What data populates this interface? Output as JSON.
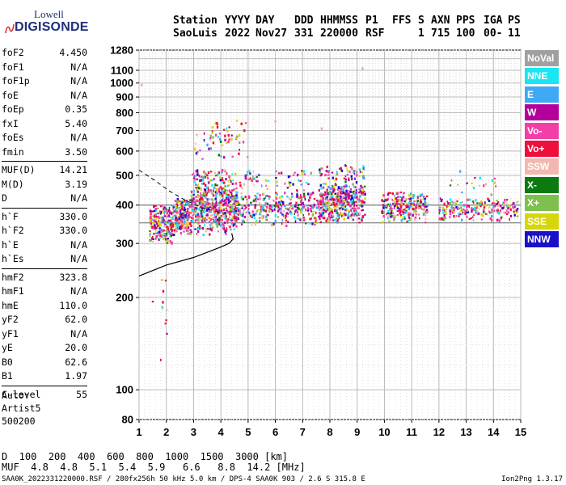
{
  "logo": {
    "line1": "Lowell",
    "line2": "DIGISONDE"
  },
  "header": {
    "cols": [
      {
        "key": "Station",
        "value": "SaoLuis"
      },
      {
        "key": "YYYY",
        "value": "2022"
      },
      {
        "key": "DAY",
        "value": "Nov27"
      },
      {
        "key": "DDD",
        "value": "331"
      },
      {
        "key": "HHMMSS",
        "value": "220000"
      },
      {
        "key": "P1",
        "value": "RSF"
      },
      {
        "key": "FFS",
        "value": ""
      },
      {
        "key": "S",
        "value": "1"
      },
      {
        "key": "AXN",
        "value": "715"
      },
      {
        "key": "PPS",
        "value": "100"
      },
      {
        "key": "IGA",
        "value": "00-"
      },
      {
        "key": "PS",
        "value": "11"
      }
    ]
  },
  "params": {
    "group1": [
      {
        "label": "foF2",
        "value": "4.450"
      },
      {
        "label": "foF1",
        "value": "N/A"
      },
      {
        "label": "foF1p",
        "value": "N/A"
      },
      {
        "label": "foE",
        "value": "N/A"
      },
      {
        "label": "foEp",
        "value": "0.35"
      },
      {
        "label": "fxI",
        "value": "5.40"
      },
      {
        "label": "foEs",
        "value": "N/A"
      },
      {
        "label": "fmin",
        "value": "3.50"
      }
    ],
    "group2": [
      {
        "label": "MUF(D)",
        "value": "14.21"
      },
      {
        "label": "M(D)",
        "value": "3.19"
      },
      {
        "label": "D",
        "value": "N/A"
      }
    ],
    "group3": [
      {
        "label": "h`F",
        "value": "330.0"
      },
      {
        "label": "h`F2",
        "value": "330.0"
      },
      {
        "label": "h`E",
        "value": "N/A"
      },
      {
        "label": "h`Es",
        "value": "N/A"
      }
    ],
    "group4": [
      {
        "label": "hmF2",
        "value": "323.8"
      },
      {
        "label": "hmF1",
        "value": "N/A"
      },
      {
        "label": "hmE",
        "value": "110.0"
      },
      {
        "label": "yF2",
        "value": "62.0"
      },
      {
        "label": "yF1",
        "value": "N/A"
      },
      {
        "label": "yE",
        "value": "20.0"
      },
      {
        "label": "B0",
        "value": "62.6"
      },
      {
        "label": "B1",
        "value": "1.97"
      }
    ],
    "group5": [
      {
        "label": "C-level",
        "value": "55"
      }
    ]
  },
  "auto": {
    "label": "Auto:",
    "software": "Artist5",
    "version": "500200"
  },
  "legend": [
    {
      "label": "NoVal",
      "color": "#a0a0a0"
    },
    {
      "label": "NNE",
      "color": "#19e6f2"
    },
    {
      "label": "E",
      "color": "#3fa9f5"
    },
    {
      "label": "W",
      "color": "#b3009b"
    },
    {
      "label": "Vo-",
      "color": "#f23fa8"
    },
    {
      "label": "Vo+",
      "color": "#ee0f3c"
    },
    {
      "label": "SSW",
      "color": "#f2b8b0"
    },
    {
      "label": "X-",
      "color": "#0b7a10"
    },
    {
      "label": "X+",
      "color": "#7fbf4d"
    },
    {
      "label": "SSE",
      "color": "#d6d60a"
    },
    {
      "label": "NNW",
      "color": "#1a10c8"
    }
  ],
  "mufTable": {
    "distLabel": "D",
    "distances": [
      "100",
      "200",
      "400",
      "600",
      "800",
      "1000",
      "1500",
      "3000"
    ],
    "distUnit": "[km]",
    "mufLabel": "MUF",
    "mufs": [
      "4.8",
      "4.8",
      "5.1",
      "5.4",
      "5.9",
      "6.6",
      "8.8",
      "14.2"
    ],
    "mufUnit": "[MHz]"
  },
  "footer": {
    "left": "SAA0K_2022331220000.RSF / 280fx256h 50 kHz 5.0 km / DPS-4 SAA0K 903 / 2.6 S 315.8 E",
    "right": "Ion2Png 1.3.17"
  },
  "chart_data": {
    "type": "scatter",
    "xlabel": "",
    "ylabel": "",
    "xlim": [
      1,
      15
    ],
    "ylim": [
      80,
      1280
    ],
    "yscale": "log",
    "xticks": [
      "1",
      "2",
      "3",
      "4",
      "5",
      "6",
      "7",
      "8",
      "9",
      "10",
      "11",
      "12",
      "13",
      "14",
      "15"
    ],
    "yticks": [
      {
        "label": "1280",
        "value": 1280
      },
      {
        "label": "1100",
        "value": 1100
      },
      {
        "label": "1000",
        "value": 1000
      },
      {
        "label": "900",
        "value": 900
      },
      {
        "label": "800",
        "value": 800
      },
      {
        "label": "700",
        "value": 700
      },
      {
        "label": "600",
        "value": 600
      },
      {
        "label": "500",
        "value": 500
      },
      {
        "label": "400",
        "value": 400
      },
      {
        "label": "300",
        "value": 300
      },
      {
        "label": "200",
        "value": 200
      },
      {
        "label": "100",
        "value": 100
      },
      {
        "label": "80",
        "value": 80
      }
    ],
    "grid": true,
    "reference_lines": [
      {
        "y": 400
      },
      {
        "y": 350
      }
    ],
    "clusters": [
      {
        "f": [
          1.4,
          2.3
        ],
        "h": [
          300,
          400
        ],
        "n": 240
      },
      {
        "f": [
          2.3,
          2.9
        ],
        "h": [
          320,
          420
        ],
        "n": 200
      },
      {
        "f": [
          2.9,
          4.6
        ],
        "h": [
          320,
          470
        ],
        "n": 520
      },
      {
        "f": [
          2.9,
          4.6
        ],
        "h": [
          460,
          520
        ],
        "n": 70
      },
      {
        "f": [
          3.0,
          5.0
        ],
        "h": [
          560,
          760
        ],
        "n": 60
      },
      {
        "f": [
          4.5,
          7.6
        ],
        "h": [
          340,
          440
        ],
        "n": 320
      },
      {
        "f": [
          4.6,
          7.4
        ],
        "h": [
          440,
          520
        ],
        "n": 60
      },
      {
        "f": [
          7.6,
          9.3
        ],
        "h": [
          350,
          470
        ],
        "n": 420
      },
      {
        "f": [
          7.6,
          9.3
        ],
        "h": [
          470,
          540
        ],
        "n": 60
      },
      {
        "f": [
          9.9,
          11.6
        ],
        "h": [
          350,
          440
        ],
        "n": 260
      },
      {
        "f": [
          12.0,
          14.9
        ],
        "h": [
          355,
          420
        ],
        "n": 220
      },
      {
        "f": [
          12.4,
          14.3
        ],
        "h": [
          420,
          520
        ],
        "n": 18
      },
      {
        "f": [
          1.5,
          2.1
        ],
        "h": [
          95,
          250
        ],
        "n": 12
      }
    ],
    "profile_curve": {
      "f": [
        1.0,
        2.0,
        3.0,
        3.6,
        4.0,
        4.3,
        4.45,
        4.4
      ],
      "h": [
        235,
        255,
        270,
        283,
        292,
        300,
        310,
        324
      ]
    },
    "dashed_curve": {
      "f": [
        1.0,
        1.6,
        2.1,
        2.7,
        3.3,
        3.9,
        4.3
      ],
      "h": [
        520,
        480,
        445,
        415,
        392,
        380,
        374
      ]
    },
    "isolated_points": [
      {
        "f": 1.1,
        "h": 985
      },
      {
        "f": 9.2,
        "h": 1115
      },
      {
        "f": 7.7,
        "h": 710
      },
      {
        "f": 6.0,
        "h": 750
      }
    ]
  }
}
